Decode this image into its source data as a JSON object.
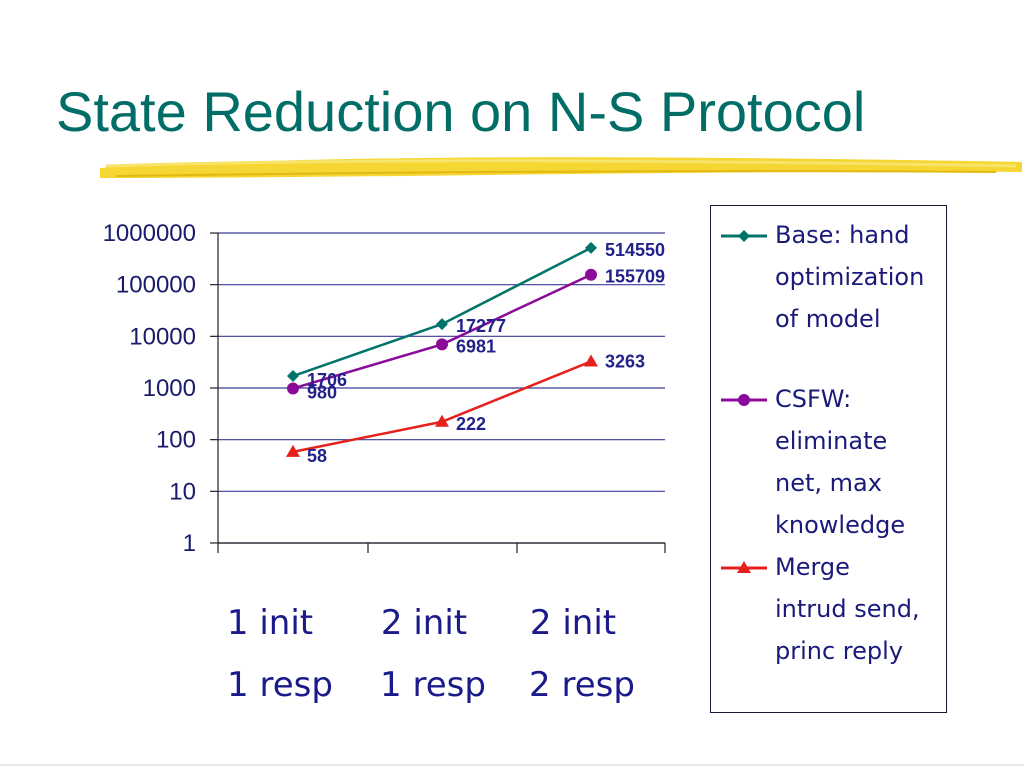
{
  "slide": {
    "title": "State Reduction on N-S Protocol",
    "title_color": "#006d66",
    "underline_color": "#f4d21c"
  },
  "chart_data": {
    "type": "line",
    "title": "",
    "xlabel": "",
    "ylabel": "",
    "y_scale": "log",
    "ylim": [
      1,
      1000000
    ],
    "y_ticks": [
      "1",
      "10",
      "100",
      "1000",
      "10000",
      "100000",
      "1000000"
    ],
    "categories": [
      {
        "line1": "1 init",
        "line2": "1 resp"
      },
      {
        "line1": "2 init",
        "line2": "1 resp"
      },
      {
        "line1": "2 init",
        "line2": "2 resp"
      }
    ],
    "grid": true,
    "legend_position": "right",
    "series": [
      {
        "name": "Base: hand optimization of model",
        "values": [
          1706,
          17277,
          514550
        ],
        "labels": [
          "1706",
          "17277",
          "514550"
        ],
        "color": "#00736b",
        "marker": "diamond"
      },
      {
        "name": "CSFW: eliminate net, max knowledge",
        "values": [
          980,
          6981,
          155709
        ],
        "labels": [
          "980",
          "6981",
          "155709"
        ],
        "color": "#8b0a9a",
        "marker": "circle"
      },
      {
        "name": "Merge intrud send, princ reply",
        "values": [
          58,
          222,
          3263
        ],
        "labels": [
          "58",
          "222",
          "3263"
        ],
        "color": "#e6201c",
        "marker": "triangle"
      }
    ]
  },
  "legend": {
    "items": [
      {
        "text": "Base: hand\noptimization\nof model"
      },
      {
        "text": "CSFW:\neliminate\nnet, max\nknowledge"
      },
      {
        "text": "Merge\nintrud send,\nprinc reply"
      }
    ]
  }
}
